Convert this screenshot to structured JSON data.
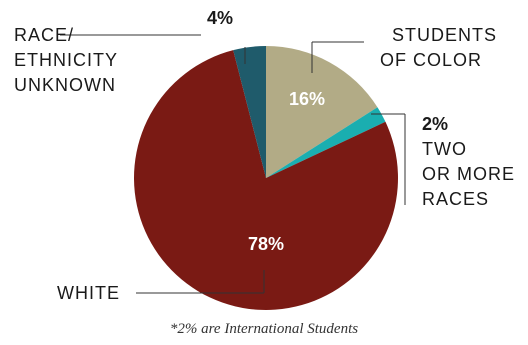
{
  "chart_data": {
    "type": "pie",
    "slices": [
      {
        "key": "students_of_color",
        "lines": [
          "STUDENTS",
          "OF COLOR"
        ],
        "value_label": "16%",
        "value": 16,
        "color": "#b2ab86"
      },
      {
        "key": "two_or_more",
        "lines": [
          "TWO",
          "OR MORE",
          "RACES"
        ],
        "value_label": "2%",
        "value": 2,
        "color": "#1aaeb0"
      },
      {
        "key": "white",
        "lines": [
          "WHITE"
        ],
        "value_label": "78%",
        "value": 78,
        "color": "#7a1a14"
      },
      {
        "key": "unknown",
        "lines": [
          "RACE/",
          "ETHNICITY",
          "UNKNOWN"
        ],
        "value_label": "4%",
        "value": 4,
        "color": "#1f5b6b"
      }
    ],
    "footnote": "*2% are International Students"
  }
}
